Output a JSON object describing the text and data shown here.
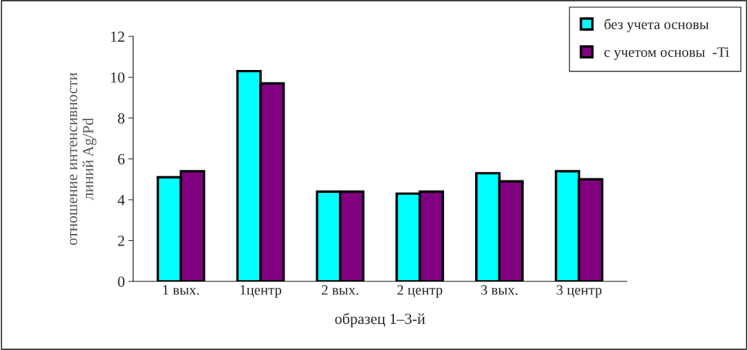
{
  "chart_data": {
    "type": "bar",
    "xlabel": "образец 1–3-й",
    "ylabel": "отношение интенсивности\nлиний Ag/Pd",
    "categories": [
      "1 вых.",
      "1центр",
      "2 вых.",
      "2 центр",
      "3 вых.",
      "3 центр"
    ],
    "series": [
      {
        "name": "без учета основы",
        "color": "#00ffff",
        "values": [
          5.1,
          10.3,
          4.4,
          4.3,
          5.3,
          5.4
        ]
      },
      {
        "name": "с учетом основы  -Ti",
        "color": "#800080",
        "values": [
          5.4,
          9.7,
          4.4,
          4.4,
          4.9,
          5.0
        ]
      }
    ],
    "ylim": [
      0,
      12
    ],
    "yticks": [
      0,
      2,
      4,
      6,
      8,
      10,
      12
    ],
    "grid": false,
    "legend": "top right"
  }
}
